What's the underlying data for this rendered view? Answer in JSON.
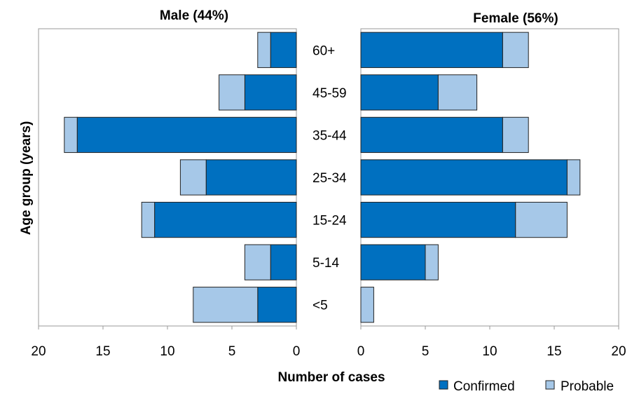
{
  "chart_data": {
    "type": "bar",
    "orientation": "horizontal",
    "layout": "population-pyramid",
    "ylabel": "Age group (years)",
    "xlabel": "Number of cases",
    "categories": [
      "60+",
      "45-59",
      "35-44",
      "25-34",
      "15-24",
      "5-14",
      "<5"
    ],
    "legend": {
      "placement": "bottom-right",
      "items": [
        {
          "name": "Confirmed",
          "color": "#0070c0"
        },
        {
          "name": "Probable",
          "color": "#a6c8e8"
        }
      ]
    },
    "panels": [
      {
        "title": "Male (44%)",
        "direction": "reversed",
        "xlim": [
          0,
          20
        ],
        "ticks": [
          20,
          15,
          10,
          5,
          0
        ],
        "stacked": true,
        "series": [
          {
            "name": "Confirmed",
            "values": [
              2,
              4,
              17,
              7,
              11,
              2,
              3
            ]
          },
          {
            "name": "Probable",
            "values": [
              1,
              2,
              1,
              2,
              1,
              2,
              5
            ]
          }
        ]
      },
      {
        "title": "Female (56%)",
        "direction": "normal",
        "xlim": [
          0,
          20
        ],
        "ticks": [
          0,
          5,
          10,
          15,
          20
        ],
        "stacked": true,
        "series": [
          {
            "name": "Confirmed",
            "values": [
              11,
              6,
              11,
              16,
              12,
              5,
              0
            ]
          },
          {
            "name": "Probable",
            "values": [
              2,
              3,
              2,
              1,
              4,
              1,
              1
            ]
          }
        ]
      }
    ]
  }
}
